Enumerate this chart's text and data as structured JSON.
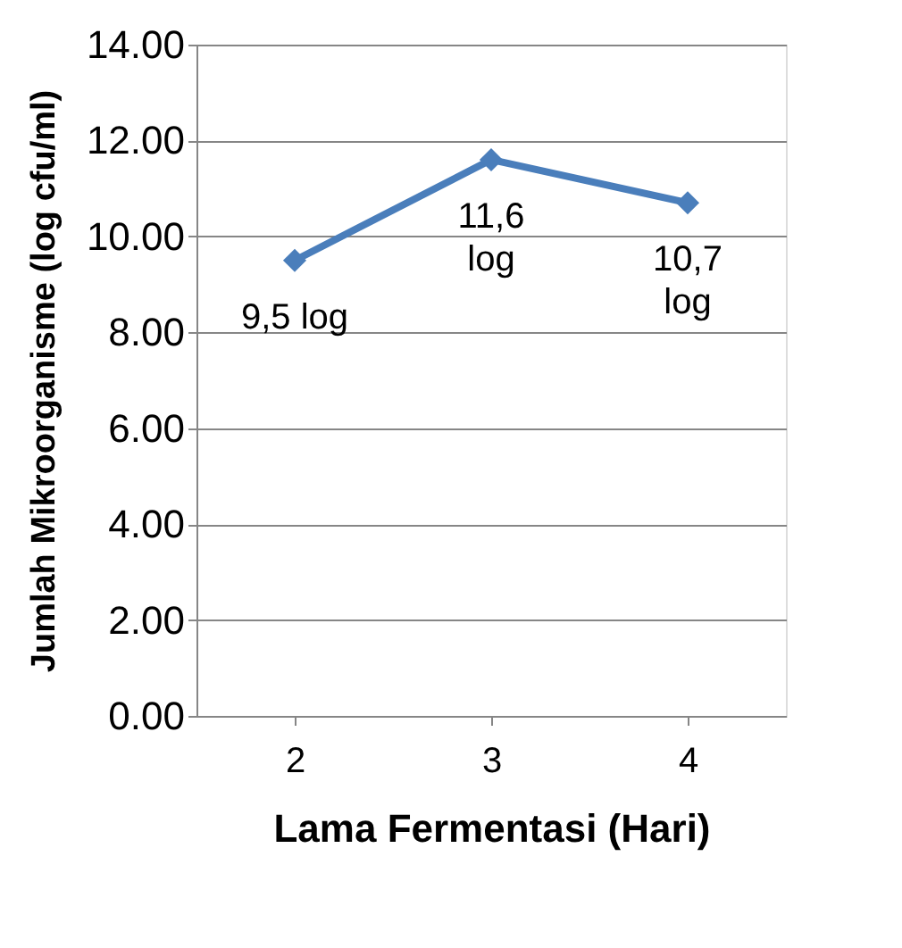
{
  "chart_data": {
    "type": "line",
    "xlabel": "Lama Fermentasi (Hari)",
    "ylabel": "Jumlah Mikroorganisme (log cfu/ml)",
    "categories": [
      "2",
      "3",
      "4"
    ],
    "series": [
      {
        "color": "#4a7ebb",
        "values": [
          9.5,
          11.6,
          10.7
        ],
        "value_labels": [
          "9,5 log",
          "11,6\nlog",
          "10,7\nlog"
        ]
      }
    ],
    "ylim": [
      0,
      14
    ],
    "yticks": [
      {
        "value": 0,
        "label": "0.00"
      },
      {
        "value": 2,
        "label": "2.00"
      },
      {
        "value": 4,
        "label": "4.00"
      },
      {
        "value": 6,
        "label": "6.00"
      },
      {
        "value": 8,
        "label": "8.00"
      },
      {
        "value": 10,
        "label": "10.00"
      },
      {
        "value": 12,
        "label": "12.00"
      },
      {
        "value": 14,
        "label": "14.00"
      }
    ],
    "grid": "y",
    "marker": "diamond",
    "line_style": "solid"
  }
}
